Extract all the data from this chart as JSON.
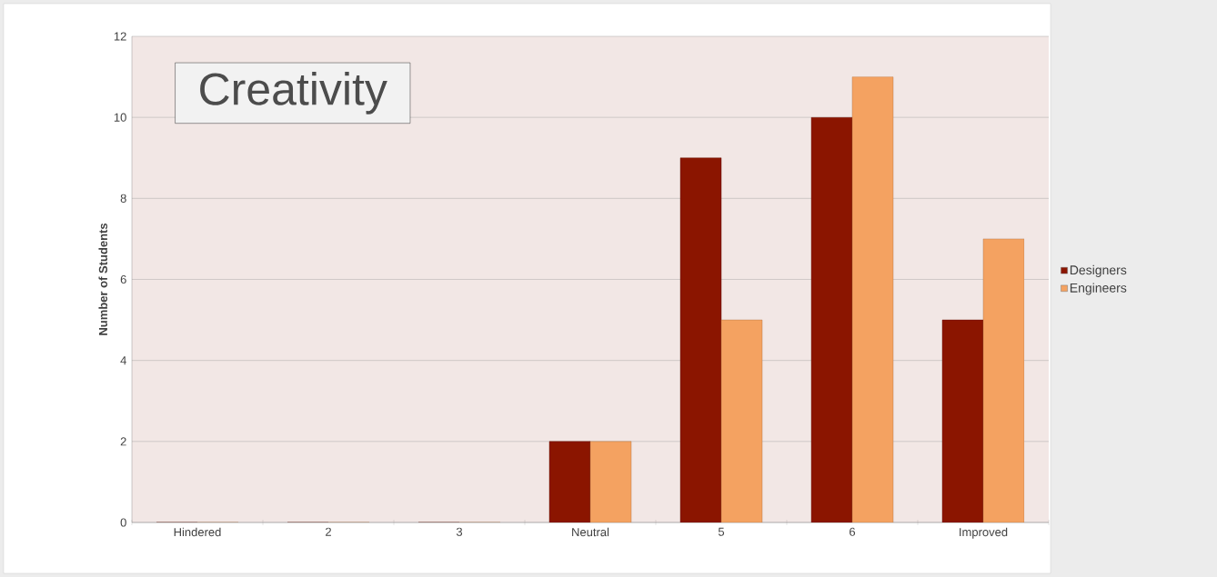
{
  "chart_data": {
    "type": "bar",
    "title": "Creativity",
    "ylabel": "Number of Students",
    "categories": [
      "Hindered",
      "2",
      "3",
      "Neutral",
      "5",
      "6",
      "Improved"
    ],
    "series": [
      {
        "name": "Designers",
        "color": "#8b1500",
        "values": [
          0,
          0,
          0,
          2,
          9,
          10,
          5
        ]
      },
      {
        "name": "Engineers",
        "color": "#f4a261",
        "values": [
          0,
          0,
          0,
          2,
          5,
          11,
          7
        ]
      }
    ],
    "ylim": [
      0,
      12
    ],
    "yticks": [
      0,
      2,
      4,
      6,
      8,
      10,
      12
    ],
    "grid": "y",
    "legend": "right"
  }
}
